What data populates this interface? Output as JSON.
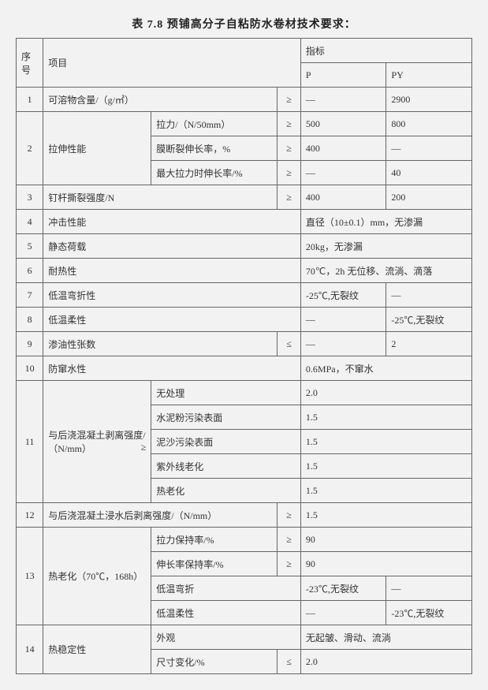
{
  "title": "表 7.8 预铺高分子自粘防水卷材技术要求：",
  "headers": {
    "seq": "序号",
    "item": "项目",
    "indicator": "指标",
    "p": "P",
    "py": "PY"
  },
  "rows": {
    "r1": {
      "seq": "1",
      "item": "可溶物含量/（g/㎡）",
      "op": "≥",
      "p": "—",
      "py": "2900"
    },
    "r2": {
      "seq": "2",
      "item": "拉伸性能",
      "a": {
        "sub": "拉力/（N/50mm）",
        "op": "≥",
        "p": "500",
        "py": "800"
      },
      "b": {
        "sub": "膜断裂伸长率，%",
        "op": "≥",
        "p": "400",
        "py": "—"
      },
      "c": {
        "sub": "最大拉力时伸长率/%",
        "op": "≥",
        "p": "—",
        "py": "40"
      }
    },
    "r3": {
      "seq": "3",
      "item": "钉杆撕裂强度/N",
      "op": "≥",
      "p": "400",
      "py": "200"
    },
    "r4": {
      "seq": "4",
      "item": "冲击性能",
      "val": "直径（10±0.1）mm，无渗漏"
    },
    "r5": {
      "seq": "5",
      "item": "静态荷载",
      "val": "20kg，无渗漏"
    },
    "r6": {
      "seq": "6",
      "item": "耐热性",
      "val": "70℃，2h 无位移、流淌、滴落"
    },
    "r7": {
      "seq": "7",
      "item": "低温弯折性",
      "p": "-25℃,无裂纹",
      "py": "—"
    },
    "r8": {
      "seq": "8",
      "item": "低温柔性",
      "p": "—",
      "py": "-25℃,无裂纹"
    },
    "r9": {
      "seq": "9",
      "item": "渗油性张数",
      "op": "≤",
      "p": "—",
      "py": "2"
    },
    "r10": {
      "seq": "10",
      "item": "防窜水性",
      "val": "0.6MPa，不窜水"
    },
    "r11": {
      "seq": "11",
      "item": "与后浇混凝土剥离强度/（N/mm）",
      "item_op": "≥",
      "a": {
        "sub": "无处理",
        "val": "2.0"
      },
      "b": {
        "sub": "水泥粉污染表面",
        "val": "1.5"
      },
      "c": {
        "sub": "泥沙污染表面",
        "val": "1.5"
      },
      "d": {
        "sub": "紫外线老化",
        "val": "1.5"
      },
      "e": {
        "sub": "热老化",
        "val": "1.5"
      }
    },
    "r12": {
      "seq": "12",
      "item": "与后浇混凝土浸水后剥离强度/（N/mm）",
      "op": "≥",
      "val": "1.5"
    },
    "r13": {
      "seq": "13",
      "item": "热老化（70℃，168h）",
      "a": {
        "sub": "拉力保持率/%",
        "op": "≥",
        "val": "90"
      },
      "b": {
        "sub": "伸长率保持率/%",
        "op": "≥",
        "val": "90"
      },
      "c": {
        "sub": "低温弯折",
        "p": "-23℃,无裂纹",
        "py": "—"
      },
      "d": {
        "sub": "低温柔性",
        "p": "—",
        "py": "-23℃,无裂纹"
      }
    },
    "r14": {
      "seq": "14",
      "item": "热稳定性",
      "a": {
        "sub": "外观",
        "val": "无起皱、滑动、流淌"
      },
      "b": {
        "sub": "尺寸变化/%",
        "op": "≤",
        "val": "2.0"
      }
    }
  }
}
